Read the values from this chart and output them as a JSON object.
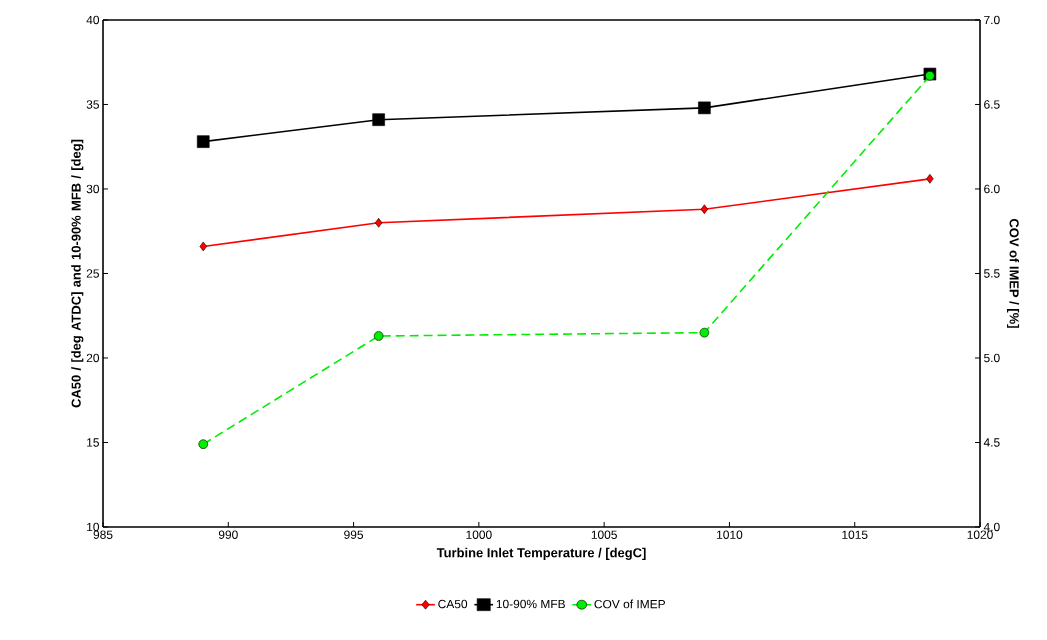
{
  "chart_data": {
    "type": "line",
    "xlabel": "Turbine Inlet Temperature / [degC]",
    "ylabel": "CA50 / [deg ATDC] and 10-90% MFB / [deg]",
    "y2label": "COV of IMEP / [%]",
    "x": [
      989,
      996,
      1009,
      1018
    ],
    "xlim": [
      985,
      1020
    ],
    "xticks": [
      985,
      990,
      995,
      1000,
      1005,
      1010,
      1015,
      1020
    ],
    "ylim": [
      10,
      40
    ],
    "yticks": [
      10,
      15,
      20,
      25,
      30,
      35,
      40
    ],
    "y2lim": [
      4.0,
      7.0
    ],
    "y2ticks": [
      {
        "value": 4,
        "label": "4.0"
      },
      {
        "value": 4.5,
        "label": "4.5"
      },
      {
        "value": 5,
        "label": "5.0"
      },
      {
        "value": 5.5,
        "label": "5.5"
      },
      {
        "value": 6,
        "label": "6.0"
      },
      {
        "value": 6.5,
        "label": "6.5"
      },
      {
        "value": 7,
        "label": "7.0"
      }
    ],
    "legend": "bottom",
    "series": [
      {
        "name": "CA50",
        "color": "#ff0000",
        "marker": "diamond",
        "line_style": "solid",
        "values": [
          26.6,
          28.0,
          28.8,
          30.6
        ]
      },
      {
        "name": "10-90% MFB",
        "color": "#000000",
        "marker": "square",
        "line_style": "solid",
        "values": [
          32.8,
          34.1,
          34.8,
          36.8
        ]
      },
      {
        "name": "COV of IMEP",
        "color": "#00ee00",
        "marker": "circle",
        "line_style": "dashed",
        "axis": "y2",
        "values": [
          4.49,
          5.13,
          5.15,
          6.67
        ]
      }
    ]
  }
}
